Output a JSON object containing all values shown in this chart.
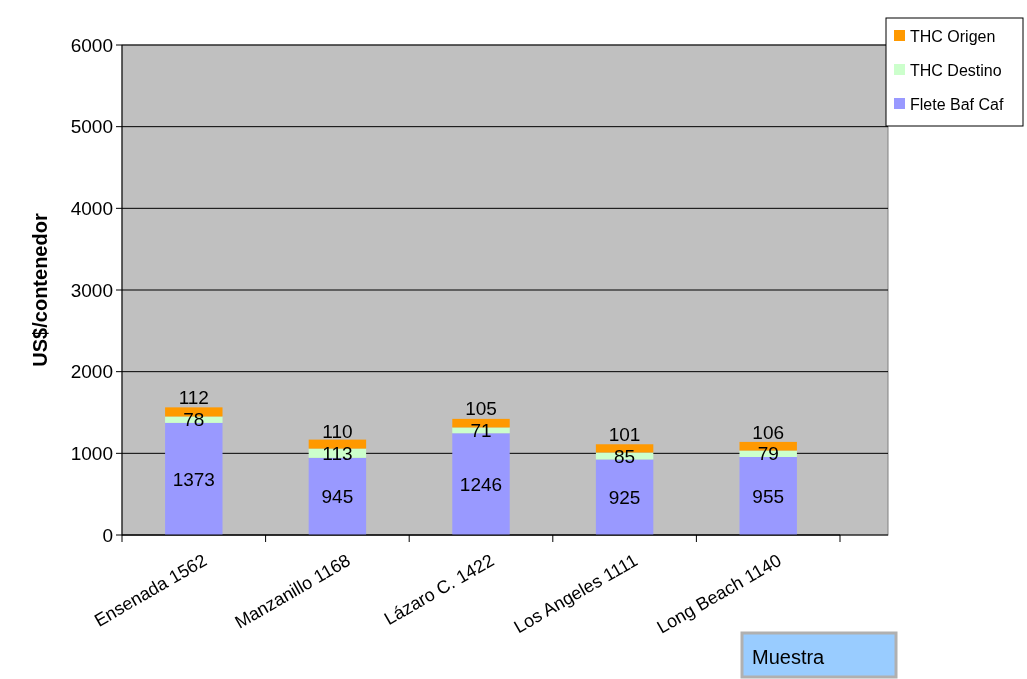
{
  "chart_data": {
    "type": "bar",
    "stacked": true,
    "ylabel": "US$/contenedor",
    "categories": [
      "Ensenada 1562",
      "Manzanillo 1168",
      "Lázaro C. 1422",
      "Los Angeles 1111",
      "Long Beach 1140"
    ],
    "series": [
      {
        "name": "Flete Baf Caf",
        "color": "#9999ff",
        "values": [
          1373,
          945,
          1246,
          925,
          955
        ]
      },
      {
        "name": "THC Destino",
        "color": "#ccffcc",
        "values": [
          78,
          113,
          71,
          85,
          79
        ]
      },
      {
        "name": "THC Origen",
        "color": "#ff9900",
        "values": [
          112,
          110,
          105,
          101,
          106
        ]
      }
    ],
    "ylim": [
      0,
      6000
    ],
    "yticks": [
      0,
      1000,
      2000,
      3000,
      4000,
      5000,
      6000
    ],
    "grid": "y",
    "legend": "top right",
    "data_labels": true,
    "annotations": [
      "Muestra"
    ]
  }
}
